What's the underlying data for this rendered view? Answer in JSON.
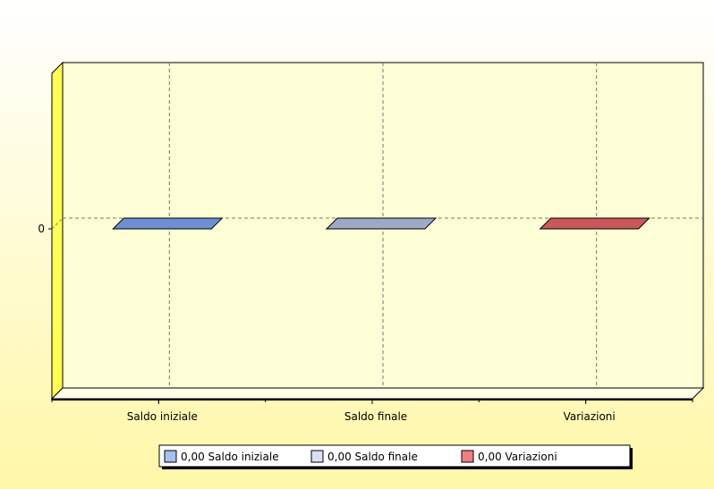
{
  "chart_data": {
    "type": "bar",
    "categories": [
      "Saldo iniziale",
      "Saldo finale",
      "Variazioni"
    ],
    "values": [
      0,
      0,
      0
    ],
    "y_ticks": [
      "0"
    ],
    "ylim": [
      -1,
      1
    ],
    "grid": true,
    "legend_position": "bottom",
    "legend": [
      {
        "label": "0,00 Saldo iniziale",
        "color": "#a8c0f0"
      },
      {
        "label": "0,00 Saldo finale",
        "color": "#d8e0f8"
      },
      {
        "label": "0,00 Variazioni",
        "color": "#f08080"
      }
    ],
    "bar_colors": [
      "#6f8fd2",
      "#9ea9c5",
      "#c8585d"
    ],
    "background_colors": {
      "page_top": "#ffffff",
      "page_bottom": "#fff7a8",
      "plot": "#fefed6",
      "side_wall": "#ffff55"
    }
  }
}
